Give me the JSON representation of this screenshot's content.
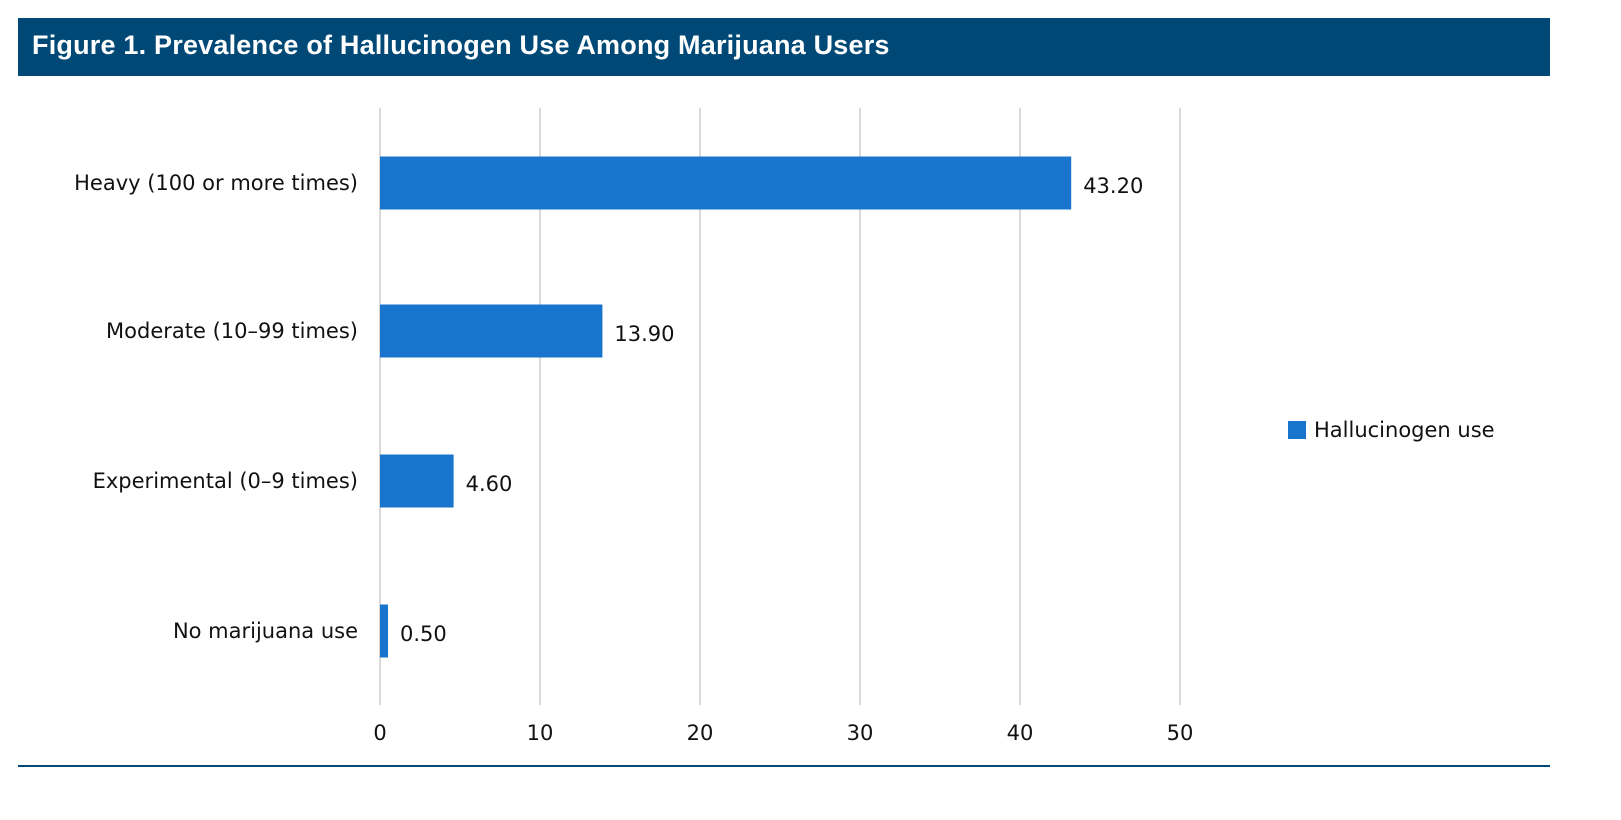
{
  "chart_data": {
    "type": "bar",
    "orientation": "horizontal",
    "title": "Figure 1. Prevalence of Hallucinogen Use Among Marijuana Users",
    "categories": [
      "Heavy (100 or more times)",
      "Moderate (10–99 times)",
      "Experimental (0–9 times)",
      "No marijuana use"
    ],
    "series": [
      {
        "name": "Hallucinogen use",
        "values": [
          43.2,
          13.9,
          4.6,
          0.5
        ],
        "labels": [
          "43.20",
          "13.90",
          "4.60",
          "0.50"
        ],
        "color": "#1874cd"
      }
    ],
    "xlim": [
      0,
      50
    ],
    "xticks": [
      "0",
      "10",
      "20",
      "30",
      "40",
      "50"
    ],
    "grid": true,
    "legend": "right",
    "title_bar_color": "#004876"
  }
}
